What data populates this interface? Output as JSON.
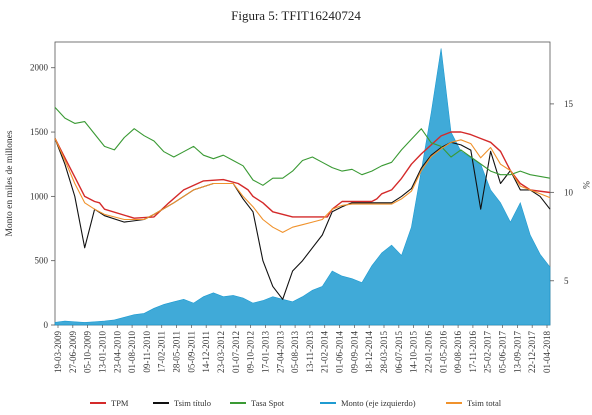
{
  "figure_title": "Figura 5: TFIT16240724",
  "chart_data": {
    "type": "line",
    "title": "Figura 5: TFIT16240724",
    "ylabel_left": "Monto en miles de millones",
    "ylabel_right": "%",
    "ylim_left": [
      0,
      2200
    ],
    "ylim_right": [
      2.5,
      18.5
    ],
    "left_ticks": [
      "0",
      "500",
      "1000",
      "1500",
      "2000"
    ],
    "right_ticks": [
      "5",
      "10",
      "15"
    ],
    "grid": false,
    "legend_position": "bottom",
    "x_tick_labels": [
      "19-03-2009",
      "27-06-2009",
      "05-10-2009",
      "13-01-2010",
      "23-04-2010",
      "01-08-2010",
      "09-11-2010",
      "17-02-2011",
      "28-05-2011",
      "05-09-2011",
      "14-12-2011",
      "23-03-2012",
      "01-07-2012",
      "09-10-2012",
      "17-01-2013",
      "27-04-2013",
      "05-08-2013",
      "13-11-2013",
      "21-02-2014",
      "01-06-2014",
      "09-09-2014",
      "18-12-2014",
      "28-03-2015",
      "06-07-2015",
      "14-10-2015",
      "22-01-2016",
      "01-05-2016",
      "09-08-2016",
      "17-11-2016",
      "25-02-2017",
      "05-06-2017",
      "13-09-2017",
      "22-12-2017",
      "01-04-2018"
    ],
    "series": [
      {
        "name": "TPM",
        "axis": "left",
        "color": "#d42a2a",
        "x": [
          0.0,
          0.02,
          0.04,
          0.06,
          0.08,
          0.09,
          0.1,
          0.16,
          0.2,
          0.23,
          0.26,
          0.3,
          0.34,
          0.37,
          0.39,
          0.4,
          0.42,
          0.44,
          0.48,
          0.5,
          0.52,
          0.55,
          0.56,
          0.58,
          0.59,
          0.6,
          0.62,
          0.63,
          0.64,
          0.65,
          0.66,
          0.68,
          0.7,
          0.72,
          0.74,
          0.76,
          0.78,
          0.8,
          0.82,
          0.84,
          0.86,
          0.88,
          0.9,
          0.92,
          0.94,
          0.96,
          1.0
        ],
        "values": [
          1450,
          1300,
          1150,
          1000,
          960,
          950,
          900,
          830,
          840,
          950,
          1050,
          1120,
          1130,
          1100,
          1050,
          1000,
          950,
          880,
          840,
          840,
          840,
          840,
          900,
          960,
          960,
          960,
          960,
          960,
          960,
          980,
          1020,
          1050,
          1140,
          1250,
          1330,
          1400,
          1470,
          1500,
          1500,
          1480,
          1450,
          1420,
          1350,
          1200,
          1100,
          1050,
          1030
        ]
      },
      {
        "name": "Tsim título",
        "axis": "left",
        "color": "#111111",
        "x": [
          0.0,
          0.02,
          0.04,
          0.06,
          0.08,
          0.1,
          0.14,
          0.18,
          0.2,
          0.24,
          0.28,
          0.32,
          0.36,
          0.38,
          0.4,
          0.42,
          0.44,
          0.46,
          0.48,
          0.5,
          0.52,
          0.54,
          0.56,
          0.58,
          0.6,
          0.64,
          0.68,
          0.7,
          0.72,
          0.74,
          0.76,
          0.78,
          0.8,
          0.82,
          0.84,
          0.86,
          0.88,
          0.9,
          0.92,
          0.94,
          0.96,
          0.98,
          1.0
        ],
        "values": [
          1450,
          1250,
          1000,
          600,
          900,
          850,
          800,
          820,
          860,
          950,
          1050,
          1100,
          1100,
          980,
          880,
          500,
          300,
          200,
          420,
          500,
          600,
          700,
          880,
          920,
          950,
          950,
          950,
          1000,
          1060,
          1220,
          1320,
          1380,
          1420,
          1400,
          1360,
          900,
          1350,
          1100,
          1200,
          1050,
          1050,
          1000,
          900
        ]
      },
      {
        "name": "Tasa Spot",
        "axis": "right",
        "color": "#3a9a34",
        "x": [
          0.0,
          0.02,
          0.04,
          0.06,
          0.08,
          0.1,
          0.12,
          0.14,
          0.16,
          0.18,
          0.2,
          0.22,
          0.24,
          0.26,
          0.28,
          0.3,
          0.32,
          0.34,
          0.36,
          0.38,
          0.4,
          0.42,
          0.44,
          0.46,
          0.48,
          0.5,
          0.52,
          0.54,
          0.56,
          0.58,
          0.6,
          0.62,
          0.64,
          0.66,
          0.68,
          0.7,
          0.72,
          0.74,
          0.76,
          0.78,
          0.8,
          0.82,
          0.84,
          0.86,
          0.88,
          0.9,
          0.92,
          0.94,
          0.96,
          0.98,
          1.0
        ],
        "values": [
          14.8,
          14.2,
          13.9,
          14.0,
          13.3,
          12.6,
          12.4,
          13.1,
          13.6,
          13.2,
          12.9,
          12.3,
          12.0,
          12.3,
          12.6,
          12.1,
          11.9,
          12.1,
          11.8,
          11.5,
          10.7,
          10.4,
          10.8,
          10.8,
          11.2,
          11.8,
          12.0,
          11.7,
          11.4,
          11.2,
          11.3,
          11.0,
          11.2,
          11.5,
          11.7,
          12.4,
          13.0,
          13.6,
          12.8,
          12.6,
          12.0,
          12.4,
          12.0,
          11.6,
          11.2,
          11.0,
          11.0,
          11.2,
          11.0,
          10.9,
          10.8
        ]
      },
      {
        "name": "Monto (eje izquierdo)",
        "axis": "left",
        "color": "#1f9bd1",
        "x": [
          0.0,
          0.02,
          0.04,
          0.06,
          0.08,
          0.1,
          0.12,
          0.14,
          0.16,
          0.18,
          0.2,
          0.22,
          0.24,
          0.26,
          0.28,
          0.3,
          0.32,
          0.34,
          0.36,
          0.38,
          0.4,
          0.42,
          0.44,
          0.46,
          0.48,
          0.5,
          0.52,
          0.54,
          0.56,
          0.58,
          0.6,
          0.62,
          0.64,
          0.66,
          0.68,
          0.7,
          0.72,
          0.74,
          0.76,
          0.78,
          0.8,
          0.82,
          0.84,
          0.86,
          0.88,
          0.9,
          0.92,
          0.94,
          0.96,
          0.98,
          1.0
        ],
        "values": [
          20,
          30,
          25,
          20,
          25,
          30,
          40,
          60,
          80,
          90,
          130,
          160,
          180,
          200,
          170,
          220,
          250,
          220,
          230,
          210,
          170,
          190,
          220,
          200,
          180,
          220,
          270,
          300,
          420,
          380,
          360,
          330,
          460,
          560,
          620,
          540,
          760,
          1200,
          1650,
          2150,
          1500,
          1350,
          1300,
          1250,
          1050,
          950,
          800,
          950,
          700,
          550,
          450
        ]
      },
      {
        "name": "Tsim total",
        "axis": "left",
        "color": "#f0922c",
        "x": [
          0.0,
          0.02,
          0.04,
          0.06,
          0.08,
          0.1,
          0.14,
          0.18,
          0.2,
          0.24,
          0.28,
          0.32,
          0.36,
          0.38,
          0.4,
          0.42,
          0.44,
          0.46,
          0.48,
          0.5,
          0.52,
          0.54,
          0.56,
          0.58,
          0.6,
          0.64,
          0.68,
          0.7,
          0.72,
          0.74,
          0.76,
          0.78,
          0.8,
          0.82,
          0.84,
          0.86,
          0.88,
          0.9,
          0.92,
          0.94,
          0.96,
          0.98,
          1.0
        ],
        "values": [
          1450,
          1280,
          1100,
          950,
          900,
          860,
          820,
          820,
          860,
          950,
          1050,
          1100,
          1100,
          1000,
          920,
          820,
          760,
          720,
          760,
          780,
          800,
          820,
          900,
          930,
          940,
          940,
          940,
          980,
          1040,
          1200,
          1310,
          1370,
          1420,
          1440,
          1410,
          1300,
          1380,
          1250,
          1200,
          1080,
          1050,
          1020,
          990
        ]
      }
    ]
  }
}
